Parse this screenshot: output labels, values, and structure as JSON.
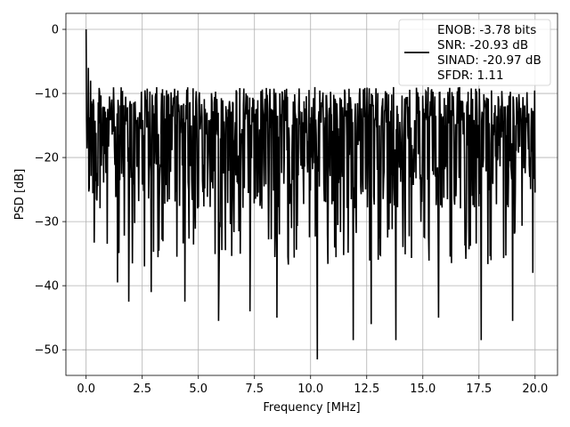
{
  "chart_data": {
    "type": "line",
    "xlabel": "Frequency [MHz]",
    "ylabel": "PSD [dB]",
    "xlim": [
      -0.9,
      21.0
    ],
    "ylim": [
      -54.0,
      2.5
    ],
    "xticks": [
      0.0,
      2.5,
      5.0,
      7.5,
      10.0,
      12.5,
      15.0,
      17.5,
      20.0
    ],
    "xtick_labels": [
      "0.0",
      "2.5",
      "5.0",
      "7.5",
      "10.0",
      "12.5",
      "15.0",
      "17.5",
      "20.0"
    ],
    "yticks": [
      0,
      -10,
      -20,
      -30,
      -40,
      -50
    ],
    "ytick_labels": [
      "0",
      "−10",
      "−20",
      "−30",
      "−40",
      "−50"
    ],
    "grid": true,
    "line_color": "#000000",
    "legend": {
      "placement": "top-right",
      "entries": [
        "ENOB: -3.78 bits",
        "SNR: -20.93 dB",
        "SINAD: -20.97 dB",
        "SFDR: 1.11"
      ]
    },
    "series": [
      {
        "x_range": [
          0.0,
          20.0
        ],
        "num_points": 1000,
        "typical_range_db": [
          -30,
          -9
        ],
        "peaks": [
          {
            "x": 0.0,
            "y": 0.0
          },
          {
            "x": 0.1,
            "y": -6.0
          },
          {
            "x": 0.2,
            "y": -8.0
          }
        ],
        "deep_nulls": [
          {
            "x": 1.4,
            "y": -39.5
          },
          {
            "x": 1.9,
            "y": -42.5
          },
          {
            "x": 2.6,
            "y": -37.0
          },
          {
            "x": 2.9,
            "y": -41.0
          },
          {
            "x": 4.4,
            "y": -42.5
          },
          {
            "x": 5.9,
            "y": -45.5
          },
          {
            "x": 7.3,
            "y": -44.0
          },
          {
            "x": 8.5,
            "y": -45.0
          },
          {
            "x": 10.3,
            "y": -51.5
          },
          {
            "x": 11.9,
            "y": -48.5
          },
          {
            "x": 12.7,
            "y": -46.0
          },
          {
            "x": 13.8,
            "y": -48.5
          },
          {
            "x": 15.7,
            "y": -45.0
          },
          {
            "x": 17.6,
            "y": -48.5
          },
          {
            "x": 19.0,
            "y": -45.5
          },
          {
            "x": 19.9,
            "y": -38.0
          }
        ]
      }
    ]
  }
}
